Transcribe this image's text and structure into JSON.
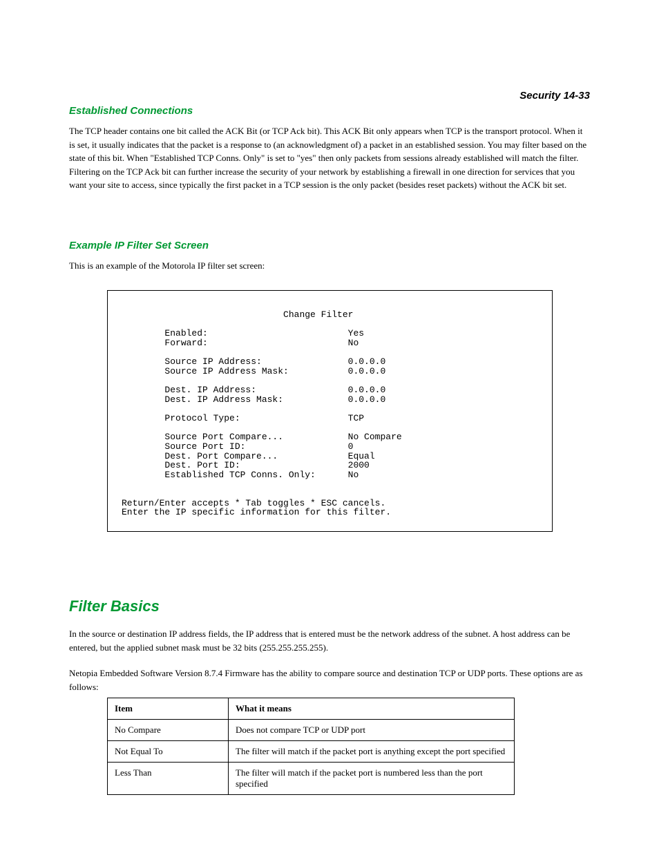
{
  "header": {
    "right": "Security   14-33"
  },
  "section1": {
    "title": "Established Connections",
    "body": "The TCP header contains one bit called the ACK Bit (or TCP Ack bit). This ACK Bit only appears when TCP is the transport protocol. When it is set, it usually indicates that the packet is a response to (an acknowledgment of) a packet in an established session. You may filter based on the state of this bit. When \"Established TCP Conns. Only\" is set to \"yes\" then only packets from sessions already established will match the filter. Filtering on the TCP Ack bit can further increase the security of your network by establishing a firewall in one direction for services that you want your site to access, since typically the first packet in a TCP session is the only packet (besides reset packets) without the ACK bit set."
  },
  "section2": {
    "title": "Example IP Filter Set Screen",
    "body": "This is an example of the Motorola IP filter set screen:"
  },
  "terminal": {
    "title": "Change Filter",
    "rows": [
      {
        "label": "Enabled:",
        "value": "Yes"
      },
      {
        "label": "Forward:",
        "value": "No"
      },
      {
        "label": "",
        "value": ""
      },
      {
        "label": "Source IP Address:",
        "value": "0.0.0.0"
      },
      {
        "label": "Source IP Address Mask:",
        "value": "0.0.0.0"
      },
      {
        "label": "",
        "value": ""
      },
      {
        "label": "Dest. IP Address:",
        "value": "0.0.0.0"
      },
      {
        "label": "Dest. IP Address Mask:",
        "value": "0.0.0.0"
      },
      {
        "label": "",
        "value": ""
      },
      {
        "label": "Protocol Type:",
        "value": "TCP"
      },
      {
        "label": "",
        "value": ""
      },
      {
        "label": "Source Port Compare...",
        "value": "No Compare"
      },
      {
        "label": "Source Port ID:",
        "value": "0"
      },
      {
        "label": "Dest. Port Compare...",
        "value": "Equal"
      },
      {
        "label": "Dest. Port ID:",
        "value": "2000"
      },
      {
        "label": "Established TCP Conns. Only:",
        "value": "No"
      }
    ],
    "footer1": "Return/Enter accepts * Tab toggles * ESC cancels.",
    "footer2": "Enter the IP specific information for this filter."
  },
  "section3": {
    "title": "Filter Basics",
    "body1": "In the source or destination IP address fields, the IP address that is entered must be the network address of the subnet. A host address can be entered, but the applied subnet mask must be 32 bits (255.255.255.255).",
    "body2": "Netopia Embedded Software Version 8.7.4 Firmware has the ability to compare source and destination TCP or UDP ports. These options are as follows:"
  },
  "table": {
    "header": {
      "col1": "Item",
      "col2": "What it means"
    },
    "rows": [
      {
        "col1": "No Compare",
        "col2": "Does not compare TCP or UDP port"
      },
      {
        "col1": "Not Equal To",
        "col2": "The filter will match if the packet port is anything except the port specified"
      },
      {
        "col1": "Less Than",
        "col2": "The filter will match if the packet port is numbered less than the port specified"
      }
    ]
  },
  "colors": {
    "heading": "#009933",
    "text": "#000000",
    "background": "#ffffff"
  },
  "fonts": {
    "heading_family": "Trebuchet MS",
    "body_family": "Georgia",
    "mono_family": "Courier New",
    "heading_small_size": 15,
    "heading_large_size": 22,
    "body_size": 13,
    "mono_size": 13
  }
}
